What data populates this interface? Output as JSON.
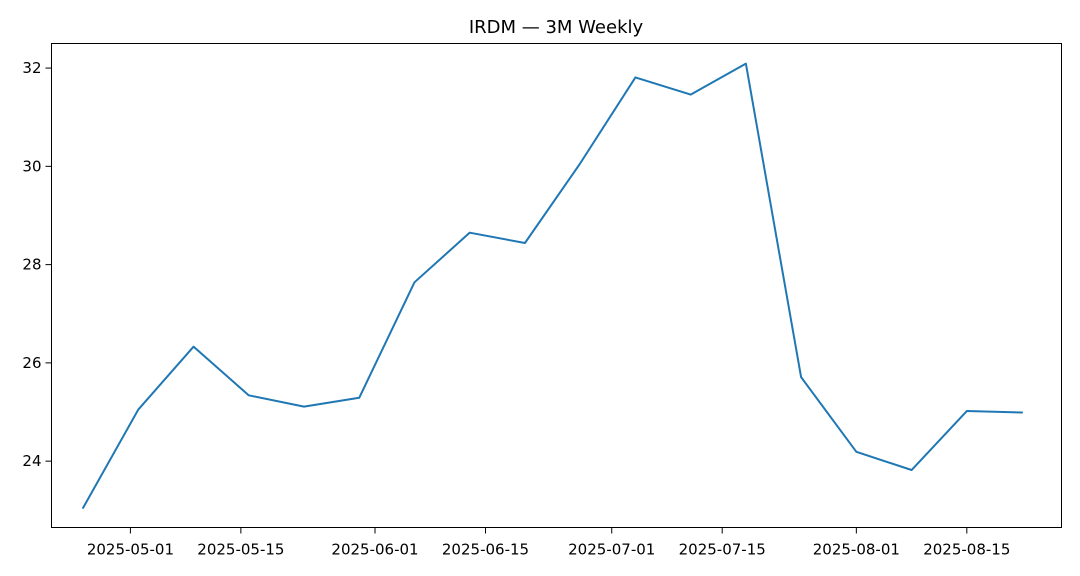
{
  "chart_data": {
    "type": "line",
    "title": "IRDM — 3M Weekly",
    "xlabel": "",
    "ylabel": "",
    "x_axis": "date",
    "grid": false,
    "legend": "none",
    "xlim": [
      "2025-04-21",
      "2025-08-27"
    ],
    "ylim": [
      22.65,
      32.5
    ],
    "x_ticks": [
      "2025-05-01",
      "2025-05-15",
      "2025-06-01",
      "2025-06-15",
      "2025-07-01",
      "2025-07-15",
      "2025-08-01",
      "2025-08-15"
    ],
    "y_ticks": [
      24,
      26,
      28,
      30,
      32
    ],
    "series": [
      {
        "color": "#1f77b4",
        "x": [
          "2025-04-25",
          "2025-05-02",
          "2025-05-09",
          "2025-05-16",
          "2025-05-23",
          "2025-05-30",
          "2025-06-06",
          "2025-06-13",
          "2025-06-20",
          "2025-06-27",
          "2025-07-04",
          "2025-07-11",
          "2025-07-18",
          "2025-07-25",
          "2025-08-01",
          "2025-08-08",
          "2025-08-15",
          "2025-08-22"
        ],
        "values": [
          23.05,
          25.05,
          26.33,
          25.34,
          25.11,
          25.29,
          27.64,
          28.65,
          28.44,
          30.06,
          31.81,
          31.46,
          32.09,
          25.71,
          24.19,
          23.82,
          25.02,
          24.99
        ]
      }
    ]
  }
}
